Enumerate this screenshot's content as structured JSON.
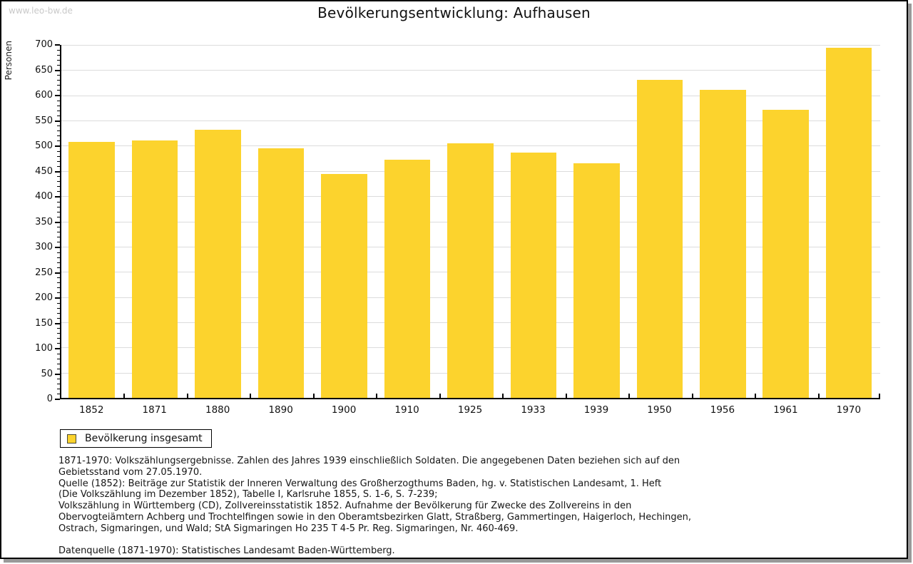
{
  "page": {
    "watermark": "www.leo-bw.de"
  },
  "chart_data": {
    "type": "bar",
    "title": "Bevölkerungsentwicklung: Aufhausen",
    "ylabel": "Personen",
    "xlabel": "",
    "categories": [
      "1852",
      "1871",
      "1880",
      "1890",
      "1900",
      "1910",
      "1925",
      "1933",
      "1939",
      "1950",
      "1956",
      "1961",
      "1970"
    ],
    "values": [
      508,
      510,
      532,
      495,
      444,
      473,
      505,
      486,
      465,
      631,
      611,
      572,
      695
    ],
    "ylim": [
      0,
      700
    ],
    "ytick_step": 50,
    "yminor_step": 10,
    "grid": true,
    "legend_position": "bottom-left",
    "series_name": "Bevölkerung insgesamt"
  },
  "legend": {
    "label": "Bevölkerung insgesamt"
  },
  "notes": {
    "lines": [
      "1871-1970: Volkszählungsergebnisse. Zahlen des Jahres 1939 einschließlich Soldaten. Die angegebenen Daten beziehen sich auf den",
      "Gebietsstand vom 27.05.1970.",
      "Quelle (1852): Beiträge zur Statistik der Inneren Verwaltung des Großherzogthums Baden, hg. v. Statistischen Landesamt, 1. Heft",
      "(Die Volkszählung im Dezember 1852), Tabelle I, Karlsruhe 1855, S. 1-6, S. 7-239;",
      "Volkszählung in Württemberg (CD), Zollvereinsstatistik 1852. Aufnahme der Bevölkerung für Zwecke des Zollvereins in den",
      "Obervogteiämtern Achberg und Trochtelfingen sowie in den Oberamtsbezirken Glatt, Straßberg, Gammertingen, Haigerloch, Hechingen,",
      "Ostrach, Sigmaringen, und Wald; StA Sigmaringen Ho 235 T 4-5 Pr. Reg. Sigmaringen, Nr. 460-469."
    ],
    "datasource": "Datenquelle (1871-1970): Statistisches Landesamt Baden-Württemberg."
  },
  "colors": {
    "bar": "#FCD32D",
    "grid": "#DCDCDC",
    "axis": "#000000",
    "watermark": "#C9C9C9"
  }
}
